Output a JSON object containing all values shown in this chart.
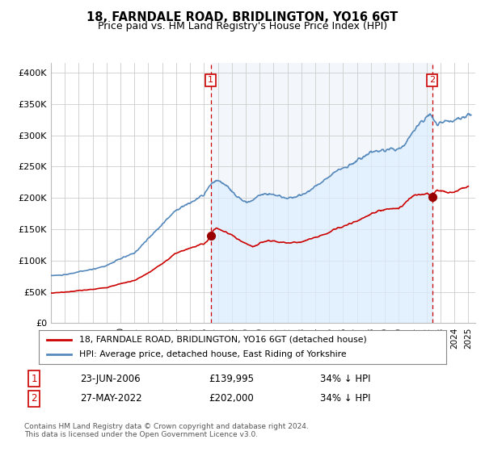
{
  "title": "18, FARNDALE ROAD, BRIDLINGTON, YO16 6GT",
  "subtitle": "Price paid vs. HM Land Registry's House Price Index (HPI)",
  "title_fontsize": 10.5,
  "subtitle_fontsize": 9,
  "ylabel_ticks": [
    "£0",
    "£50K",
    "£100K",
    "£150K",
    "£200K",
    "£250K",
    "£300K",
    "£350K",
    "£400K"
  ],
  "ytick_values": [
    0,
    50000,
    100000,
    150000,
    200000,
    250000,
    300000,
    350000,
    400000
  ],
  "ylim": [
    0,
    415000
  ],
  "xlim_start": 1995.0,
  "xlim_end": 2025.5,
  "point1_x": 2006.48,
  "point1_y": 139995,
  "point2_x": 2022.41,
  "point2_y": 202000,
  "legend_line1": "18, FARNDALE ROAD, BRIDLINGTON, YO16 6GT (detached house)",
  "legend_line2": "HPI: Average price, detached house, East Riding of Yorkshire",
  "table_row1": [
    "1",
    "23-JUN-2006",
    "£139,995",
    "34% ↓ HPI"
  ],
  "table_row2": [
    "2",
    "27-MAY-2022",
    "£202,000",
    "34% ↓ HPI"
  ],
  "footer": "Contains HM Land Registry data © Crown copyright and database right 2024.\nThis data is licensed under the Open Government Licence v3.0.",
  "red_color": "#cc0000",
  "blue_color": "#5588bb",
  "fill_color": "#ddeeff",
  "bg_color": "#ffffff",
  "grid_color": "#cccccc",
  "point_color": "#990000"
}
